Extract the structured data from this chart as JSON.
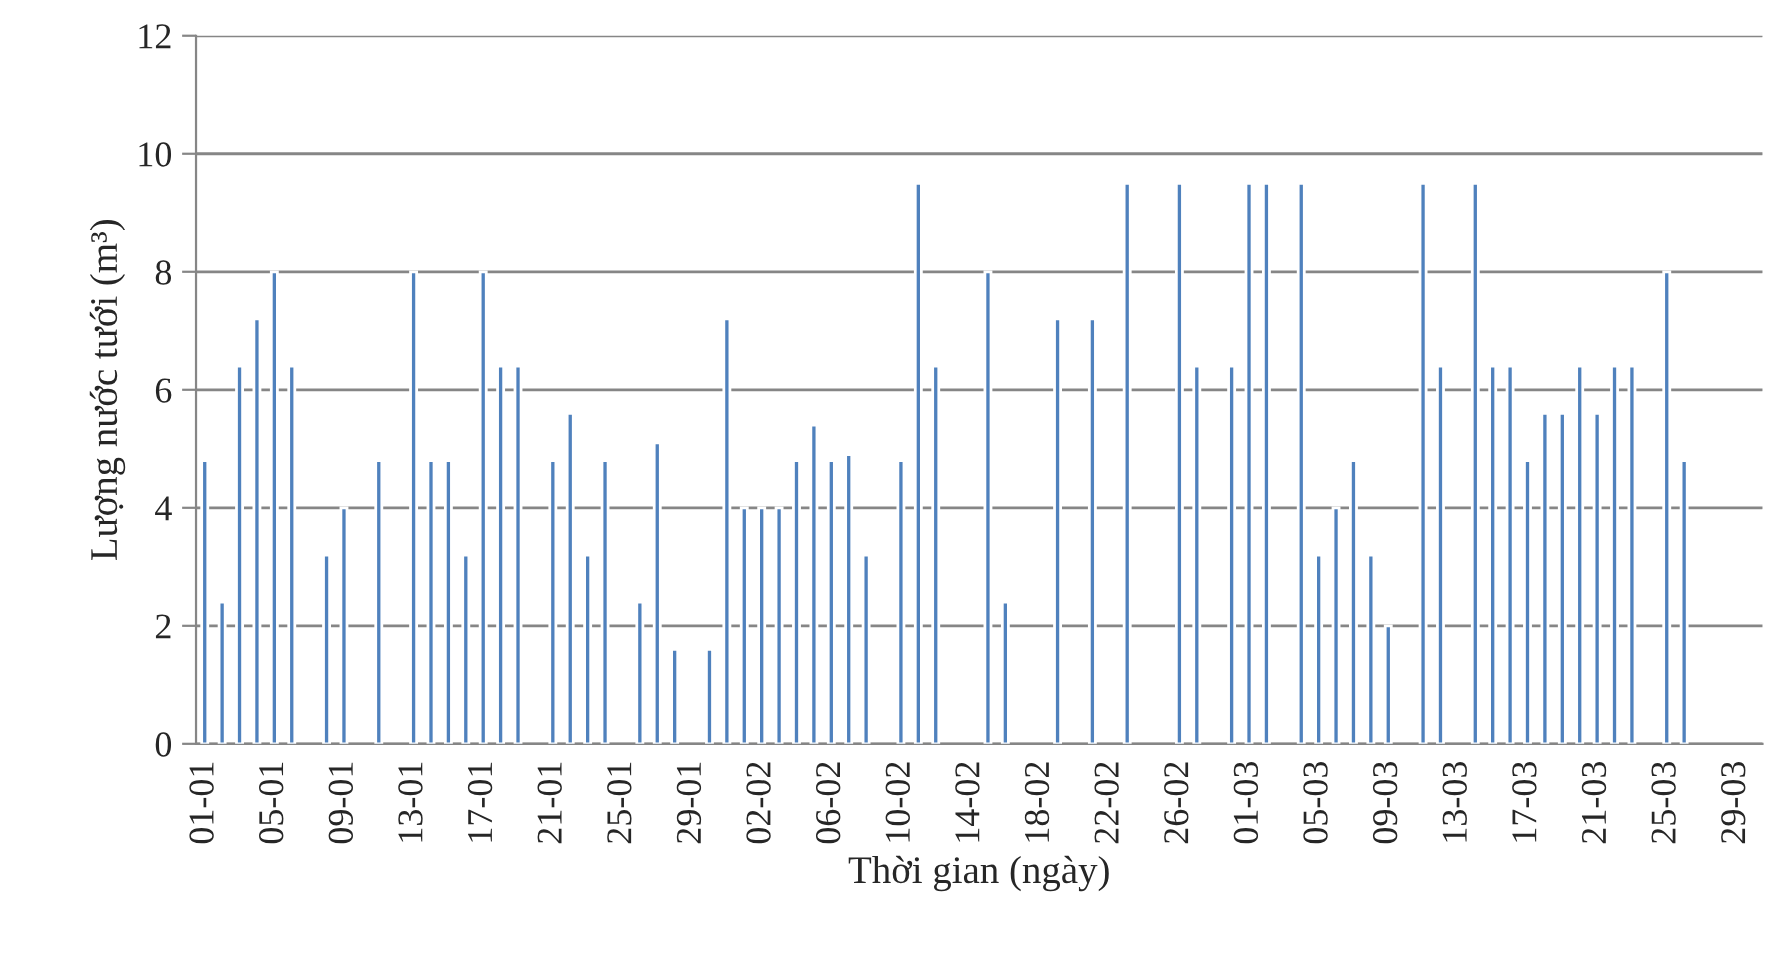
{
  "chart_data": {
    "type": "bar",
    "xlabel": "Thời gian (ngày)",
    "ylabel": "Lượng nước tưới (m³)",
    "categories": [
      "01-01",
      null,
      null,
      null,
      "05-01",
      null,
      null,
      null,
      "09-01",
      null,
      null,
      null,
      "13-01",
      null,
      null,
      null,
      "17-01",
      null,
      null,
      null,
      "21-01",
      null,
      null,
      null,
      "25-01",
      null,
      null,
      null,
      "29-01",
      null,
      null,
      null,
      "02-02",
      null,
      null,
      null,
      "06-02",
      null,
      null,
      null,
      "10-02",
      null,
      null,
      null,
      "14-02",
      null,
      null,
      null,
      "18-02",
      null,
      null,
      null,
      "22-02",
      null,
      null,
      null,
      "26-02",
      null,
      null,
      null,
      "01-03",
      null,
      null,
      null,
      "05-03",
      null,
      null,
      null,
      "09-03",
      null,
      null,
      null,
      "13-03",
      null,
      null,
      null,
      "17-03",
      null,
      null,
      null,
      "21-03",
      null,
      null,
      null,
      "25-03",
      null,
      null,
      null,
      "29-03",
      null
    ],
    "values": [
      4.8,
      2.4,
      6.4,
      7.2,
      8.0,
      6.4,
      null,
      3.2,
      4.0,
      null,
      4.8,
      null,
      8.0,
      4.8,
      4.8,
      3.2,
      8.0,
      6.4,
      6.4,
      null,
      4.8,
      5.6,
      3.2,
      4.8,
      null,
      2.4,
      5.1,
      1.6,
      null,
      1.6,
      7.2,
      4.0,
      4.0,
      4.0,
      4.8,
      5.4,
      4.8,
      4.9,
      3.2,
      null,
      4.8,
      9.5,
      6.4,
      null,
      null,
      8.0,
      2.4,
      null,
      null,
      7.2,
      null,
      7.2,
      null,
      9.5,
      null,
      null,
      9.5,
      6.4,
      null,
      6.4,
      9.5,
      9.5,
      null,
      9.5,
      3.2,
      4.0,
      4.8,
      3.2,
      2.0,
      null,
      9.5,
      6.4,
      null,
      9.5,
      6.4,
      6.4,
      4.8,
      5.6,
      5.6,
      6.4,
      5.6,
      6.4,
      6.4,
      null,
      8.0,
      4.8,
      null,
      null,
      null,
      null
    ],
    "color": "#4f81bd",
    "ylim": [
      0,
      12
    ],
    "yticks": [
      0,
      2,
      4,
      6,
      8,
      10,
      12
    ],
    "grid": "y"
  }
}
